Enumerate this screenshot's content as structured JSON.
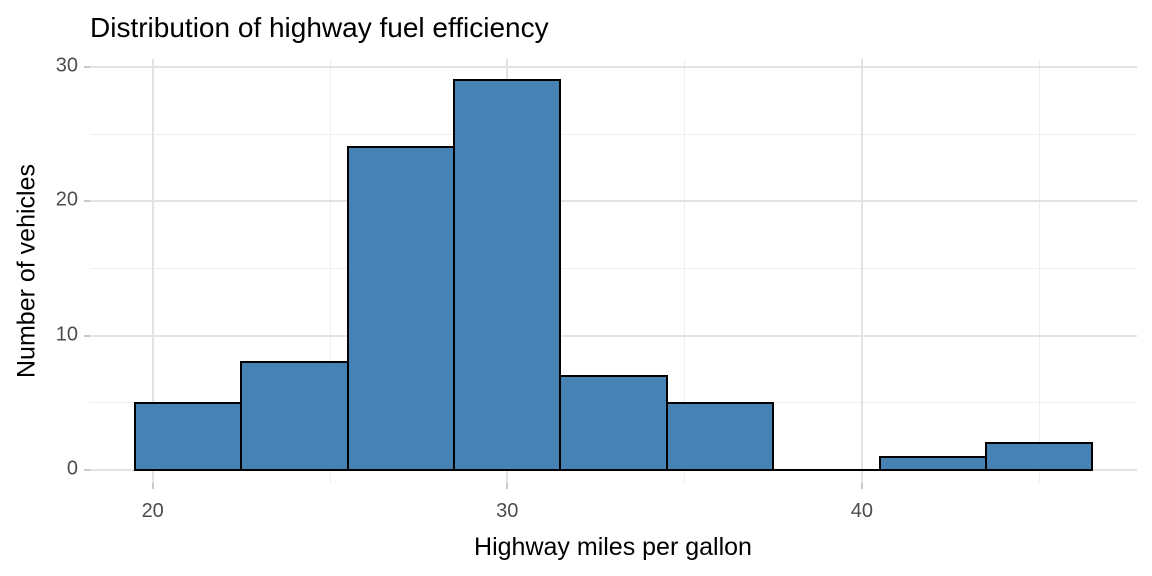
{
  "chart_data": {
    "type": "bar",
    "subtype": "histogram",
    "title": "Distribution of highway fuel efficiency",
    "xlabel": "Highway miles per gallon",
    "ylabel": "Number of vehicles",
    "bin_width": 3,
    "bin_edges": [
      19.5,
      22.5,
      25.5,
      28.5,
      31.5,
      34.5,
      37.5,
      40.5,
      43.5,
      46.5
    ],
    "counts": [
      5,
      8,
      24,
      29,
      7,
      5,
      0,
      1,
      2
    ],
    "x_major_ticks": [
      20,
      30,
      40
    ],
    "x_minor_ticks": [
      25,
      35,
      45
    ],
    "y_major_ticks": [
      0,
      10,
      20,
      30
    ],
    "y_minor_ticks": [
      5,
      15,
      25
    ],
    "xlim": [
      18.2,
      47.8
    ],
    "ylim": [
      0,
      30
    ],
    "grid": true,
    "legend": false,
    "colors": {
      "bar_fill": "#4682b4",
      "bar_stroke": "#000000",
      "grid_major": "#e3e3e3",
      "grid_minor": "#efefef",
      "tick_mark": "#c9c9c9",
      "tick_label": "#4d4d4d",
      "title_text": "#000000",
      "background": "#ffffff"
    }
  }
}
